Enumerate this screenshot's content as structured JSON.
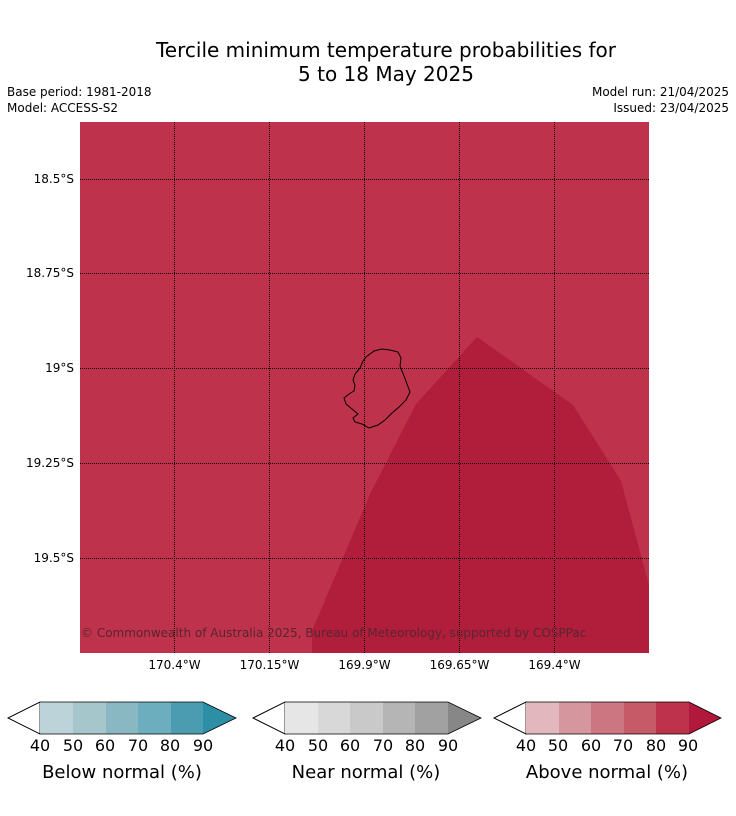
{
  "title": {
    "line1": "Tercile minimum temperature probabilities for",
    "line2": "5 to 18 May 2025"
  },
  "header": {
    "base_period": "Base period: 1981-2018",
    "model": "Model: ACCESS-S2",
    "model_run": "Model run: 21/04/2025",
    "issued": "Issued: 23/04/2025"
  },
  "map": {
    "lat_labels": [
      "18.5°S",
      "18.75°S",
      "19°S",
      "19.25°S",
      "19.5°S"
    ],
    "lon_labels": [
      "170.4°W",
      "170.15°W",
      "169.9°W",
      "169.65°W",
      "169.4°W"
    ],
    "copyright": "© Commonwealth of Australia 2025, Bureau of Meteorology, supported by COSPPac",
    "colors": {
      "background_above_80": "#be324b",
      "region_above_90": "#b11e3b"
    }
  },
  "legend": {
    "ticks": [
      "40",
      "50",
      "60",
      "70",
      "80",
      "90"
    ],
    "below": {
      "label": "Below normal (%)",
      "colors": [
        "#bcd3d9",
        "#a5c6cb",
        "#89b7c2",
        "#6caebd",
        "#4b9cb0",
        "#2c8fa6"
      ]
    },
    "near": {
      "label": "Near normal (%)",
      "colors": [
        "#e6e6e6",
        "#d8d8d8",
        "#c9c9c9",
        "#b5b5b5",
        "#a1a1a1",
        "#878787"
      ]
    },
    "above": {
      "label": "Above normal (%)",
      "colors": [
        "#e2b7bd",
        "#d5969d",
        "#cb7680",
        "#c65a67",
        "#be324b",
        "#b0183c"
      ]
    }
  }
}
